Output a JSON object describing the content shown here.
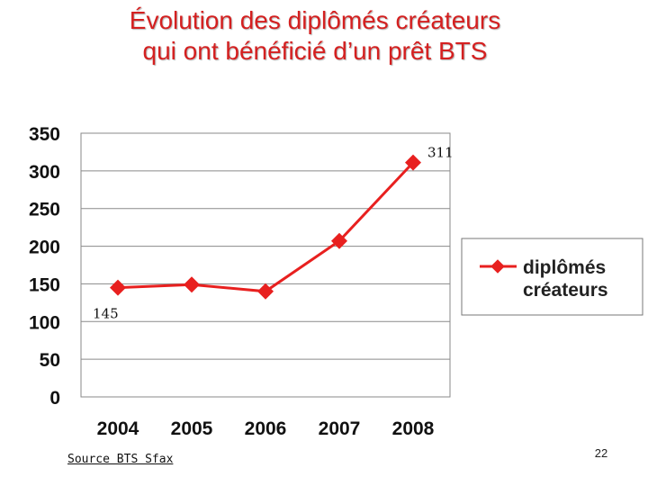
{
  "title": {
    "line1": "Évolution des diplômés créateurs",
    "line2": "qui ont bénéficié d’un prêt BTS"
  },
  "source": "Source BTS Sfax",
  "page_number": "22",
  "chart_data": {
    "type": "line",
    "categories": [
      "2004",
      "2005",
      "2006",
      "2007",
      "2008"
    ],
    "series": [
      {
        "name": "diplômés créateurs",
        "values": [
          145,
          149,
          140,
          207,
          311
        ],
        "color": "#e8201f"
      }
    ],
    "yticks": [
      "0",
      "50",
      "100",
      "150",
      "200",
      "250",
      "300",
      "350"
    ],
    "ylim": [
      0,
      350
    ],
    "grid": true,
    "legend": "right",
    "annotations": [
      {
        "label": "145",
        "category": "2004"
      },
      {
        "label": "311",
        "category": "2008"
      }
    ]
  }
}
